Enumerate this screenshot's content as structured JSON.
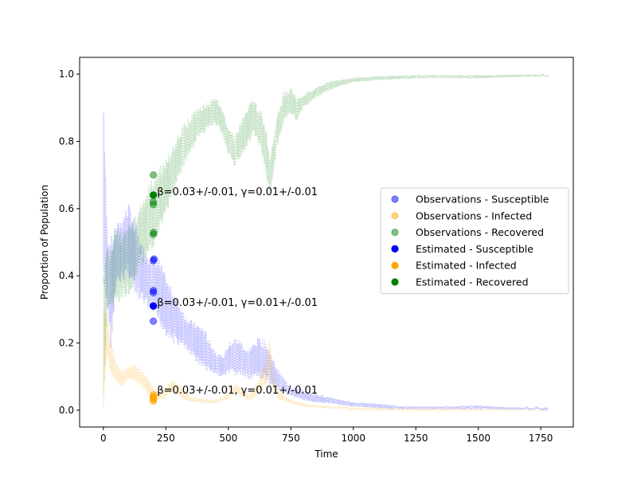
{
  "chart_data": {
    "type": "scatter",
    "xlabel": "Time",
    "ylabel": "Proportion of Population",
    "xlim": [
      -95,
      1880
    ],
    "ylim": [
      -0.05,
      1.05
    ],
    "xticks": [
      0,
      250,
      500,
      750,
      1000,
      1250,
      1500,
      1750
    ],
    "yticks": [
      0.0,
      0.2,
      0.4,
      0.6,
      0.8,
      1.0
    ],
    "xtick_labels": [
      "0",
      "250",
      "500",
      "750",
      "1000",
      "1250",
      "1500",
      "1750"
    ],
    "ytick_labels": [
      "0.0",
      "0.2",
      "0.4",
      "0.6",
      "0.8",
      "1.0"
    ],
    "grid": false,
    "legend_position": "center-right",
    "trajectory_lines": [
      {
        "name": "Susceptible trajectory",
        "color": "#0000ff",
        "style": "dotted",
        "band": [
          [
            0,
            0.3,
            0.99
          ],
          [
            15,
            0.3,
            0.55
          ],
          [
            30,
            0.18,
            0.52
          ],
          [
            50,
            0.35,
            0.55
          ],
          [
            75,
            0.38,
            0.58
          ],
          [
            100,
            0.4,
            0.62
          ],
          [
            125,
            0.33,
            0.57
          ],
          [
            150,
            0.32,
            0.5
          ],
          [
            175,
            0.3,
            0.48
          ],
          [
            200,
            0.28,
            0.46
          ],
          [
            225,
            0.25,
            0.45
          ],
          [
            250,
            0.22,
            0.4
          ],
          [
            275,
            0.2,
            0.36
          ],
          [
            300,
            0.19,
            0.33
          ],
          [
            325,
            0.18,
            0.29
          ],
          [
            350,
            0.16,
            0.27
          ],
          [
            375,
            0.14,
            0.26
          ],
          [
            400,
            0.12,
            0.25
          ],
          [
            425,
            0.11,
            0.21
          ],
          [
            450,
            0.1,
            0.18
          ],
          [
            475,
            0.1,
            0.16
          ],
          [
            500,
            0.1,
            0.2
          ],
          [
            525,
            0.1,
            0.22
          ],
          [
            550,
            0.1,
            0.21
          ],
          [
            575,
            0.09,
            0.18
          ],
          [
            600,
            0.09,
            0.2
          ],
          [
            625,
            0.09,
            0.22
          ],
          [
            650,
            0.08,
            0.21
          ],
          [
            675,
            0.07,
            0.16
          ],
          [
            700,
            0.06,
            0.12
          ],
          [
            750,
            0.04,
            0.07
          ],
          [
            800,
            0.03,
            0.06
          ],
          [
            850,
            0.02,
            0.05
          ],
          [
            900,
            0.02,
            0.04
          ],
          [
            1000,
            0.01,
            0.025
          ],
          [
            1100,
            0.005,
            0.02
          ],
          [
            1200,
            0.003,
            0.012
          ],
          [
            1300,
            0.003,
            0.012
          ],
          [
            1400,
            0.003,
            0.012
          ],
          [
            1500,
            0.003,
            0.015
          ],
          [
            1600,
            0.002,
            0.01
          ],
          [
            1700,
            0.002,
            0.008
          ],
          [
            1780,
            0.002,
            0.006
          ]
        ]
      },
      {
        "name": "Infected trajectory",
        "color": "#ffa500",
        "style": "dotted",
        "band": [
          [
            0,
            0.01,
            0.3
          ],
          [
            15,
            0.15,
            0.31
          ],
          [
            30,
            0.1,
            0.2
          ],
          [
            50,
            0.08,
            0.15
          ],
          [
            75,
            0.07,
            0.12
          ],
          [
            100,
            0.09,
            0.13
          ],
          [
            125,
            0.08,
            0.14
          ],
          [
            150,
            0.07,
            0.12
          ],
          [
            175,
            0.05,
            0.1
          ],
          [
            200,
            0.03,
            0.07
          ],
          [
            225,
            0.03,
            0.05
          ],
          [
            250,
            0.04,
            0.07
          ],
          [
            275,
            0.05,
            0.09
          ],
          [
            300,
            0.04,
            0.08
          ],
          [
            325,
            0.03,
            0.06
          ],
          [
            350,
            0.025,
            0.04
          ],
          [
            400,
            0.02,
            0.035
          ],
          [
            450,
            0.02,
            0.03
          ],
          [
            500,
            0.03,
            0.05
          ],
          [
            525,
            0.05,
            0.08
          ],
          [
            550,
            0.04,
            0.07
          ],
          [
            575,
            0.03,
            0.05
          ],
          [
            600,
            0.03,
            0.06
          ],
          [
            625,
            0.05,
            0.1
          ],
          [
            650,
            0.07,
            0.15
          ],
          [
            665,
            0.1,
            0.22
          ],
          [
            680,
            0.05,
            0.1
          ],
          [
            700,
            0.03,
            0.06
          ],
          [
            750,
            0.02,
            0.03
          ],
          [
            800,
            0.01,
            0.02
          ],
          [
            900,
            0.005,
            0.012
          ],
          [
            1000,
            0.002,
            0.006
          ],
          [
            1200,
            0.0,
            0.003
          ],
          [
            1500,
            0.0,
            0.002
          ],
          [
            1780,
            0.0,
            0.001
          ]
        ]
      },
      {
        "name": "Recovered trajectory",
        "color": "#008000",
        "style": "dotted",
        "band": [
          [
            0,
            0.0,
            0.45
          ],
          [
            15,
            0.3,
            0.5
          ],
          [
            30,
            0.3,
            0.48
          ],
          [
            50,
            0.3,
            0.56
          ],
          [
            75,
            0.33,
            0.52
          ],
          [
            100,
            0.34,
            0.55
          ],
          [
            125,
            0.38,
            0.58
          ],
          [
            150,
            0.42,
            0.62
          ],
          [
            175,
            0.45,
            0.66
          ],
          [
            200,
            0.48,
            0.7
          ],
          [
            225,
            0.52,
            0.73
          ],
          [
            250,
            0.58,
            0.75
          ],
          [
            275,
            0.63,
            0.78
          ],
          [
            300,
            0.68,
            0.83
          ],
          [
            325,
            0.73,
            0.86
          ],
          [
            350,
            0.76,
            0.88
          ],
          [
            375,
            0.8,
            0.9
          ],
          [
            400,
            0.82,
            0.91
          ],
          [
            425,
            0.84,
            0.92
          ],
          [
            450,
            0.85,
            0.93
          ],
          [
            475,
            0.82,
            0.9
          ],
          [
            500,
            0.76,
            0.85
          ],
          [
            525,
            0.72,
            0.82
          ],
          [
            550,
            0.75,
            0.86
          ],
          [
            575,
            0.78,
            0.9
          ],
          [
            600,
            0.82,
            0.93
          ],
          [
            625,
            0.78,
            0.9
          ],
          [
            650,
            0.7,
            0.85
          ],
          [
            665,
            0.63,
            0.76
          ],
          [
            680,
            0.7,
            0.82
          ],
          [
            700,
            0.8,
            0.9
          ],
          [
            725,
            0.86,
            0.95
          ],
          [
            750,
            0.88,
            0.96
          ],
          [
            775,
            0.86,
            0.93
          ],
          [
            800,
            0.9,
            0.94
          ],
          [
            850,
            0.93,
            0.96
          ],
          [
            900,
            0.95,
            0.98
          ],
          [
            950,
            0.965,
            0.985
          ],
          [
            1000,
            0.975,
            0.99
          ],
          [
            1100,
            0.982,
            0.995
          ],
          [
            1200,
            0.985,
            0.997
          ],
          [
            1300,
            0.988,
            0.998
          ],
          [
            1400,
            0.988,
            0.998
          ],
          [
            1500,
            0.986,
            0.998
          ],
          [
            1600,
            0.99,
            0.999
          ],
          [
            1700,
            0.992,
            0.999
          ],
          [
            1780,
            0.994,
            0.999
          ]
        ]
      }
    ],
    "series": [
      {
        "name": "Observations - Susceptible",
        "color": "#0000ff",
        "alpha": 0.5,
        "points": [
          [
            200,
            0.265
          ],
          [
            200,
            0.31
          ],
          [
            200,
            0.35
          ],
          [
            200,
            0.356
          ],
          [
            200,
            0.445
          ],
          [
            203,
            0.45
          ]
        ]
      },
      {
        "name": "Observations - Infected",
        "color": "#ffa500",
        "alpha": 0.5,
        "points": [
          [
            200,
            0.027
          ],
          [
            200,
            0.031
          ],
          [
            201,
            0.035
          ],
          [
            200,
            0.042
          ],
          [
            201,
            0.046
          ]
        ]
      },
      {
        "name": "Observations - Recovered",
        "color": "#008000",
        "alpha": 0.5,
        "points": [
          [
            200,
            0.523
          ],
          [
            201,
            0.529
          ],
          [
            200,
            0.612
          ],
          [
            200,
            0.62
          ],
          [
            200,
            0.64
          ],
          [
            200,
            0.7
          ]
        ]
      },
      {
        "name": "Estimated - Susceptible",
        "color": "#0000ff",
        "alpha": 1.0,
        "points": [
          [
            200,
            0.31
          ]
        ]
      },
      {
        "name": "Estimated - Infected",
        "color": "#ffa500",
        "alpha": 1.0,
        "points": [
          [
            200,
            0.037
          ]
        ]
      },
      {
        "name": "Estimated - Recovered",
        "color": "#008000",
        "alpha": 1.0,
        "points": [
          [
            200,
            0.64
          ]
        ]
      }
    ],
    "annotations": [
      {
        "text": "β=0.03+/-0.01, γ=0.01+/-0.01",
        "x": 215,
        "y": 0.64
      },
      {
        "text": "β=0.03+/-0.01, γ=0.01+/-0.01",
        "x": 215,
        "y": 0.31
      },
      {
        "text": "β=0.03+/-0.01, γ=0.01+/-0.01",
        "x": 215,
        "y": 0.049
      }
    ]
  }
}
